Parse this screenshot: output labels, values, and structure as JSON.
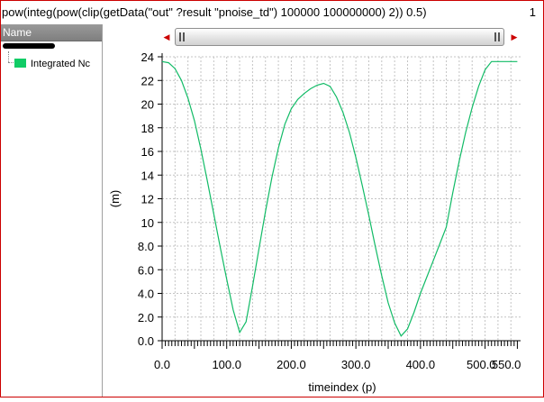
{
  "window": {
    "expression": "pow(integ(pow(clip(getData(\"out\" ?result \"pnoise_td\") 100000 100000000) 2)) 0.5)",
    "page_number": "1",
    "accent_color": "#cc0000"
  },
  "sidebar": {
    "header": "Name",
    "legend_item_label": "Integrated Nc",
    "legend_color": "#11cc66"
  },
  "scrollbar": {
    "left_arrow_icon": "triangle-left-icon",
    "right_arrow_icon": "triangle-right-icon"
  },
  "chart_data": {
    "type": "line",
    "xlabel": "timeindex (p)",
    "ylabel": "(m)",
    "xlim": [
      0,
      555
    ],
    "ylim": [
      0,
      24
    ],
    "x_ticks": [
      "0.0",
      "100.0",
      "200.0",
      "300.0",
      "400.0",
      "500.0",
      "550.0"
    ],
    "y_ticks": [
      "0.0",
      "2.0",
      "4.0",
      "6.0",
      "8.0",
      "10",
      "12",
      "14",
      "16",
      "18",
      "20",
      "22",
      "24"
    ],
    "grid": true,
    "series": [
      {
        "color": "#11bb66",
        "x": [
          0,
          10,
          20,
          30,
          40,
          50,
          60,
          70,
          80,
          90,
          100,
          110,
          120,
          130,
          140,
          150,
          160,
          170,
          180,
          190,
          200,
          210,
          220,
          230,
          240,
          250,
          260,
          270,
          280,
          290,
          300,
          310,
          320,
          330,
          340,
          350,
          360,
          370,
          380,
          390,
          400,
          410,
          420,
          430,
          440,
          450,
          460,
          470,
          480,
          490,
          500,
          510,
          520,
          530,
          540,
          550
        ],
        "y": [
          23.6,
          23.5,
          23.0,
          22.0,
          20.5,
          18.6,
          16.2,
          13.5,
          10.7,
          7.9,
          5.2,
          2.6,
          0.7,
          1.6,
          4.6,
          7.8,
          10.9,
          13.8,
          16.3,
          18.3,
          19.6,
          20.4,
          20.9,
          21.3,
          21.6,
          21.75,
          21.5,
          20.6,
          19.3,
          17.6,
          15.5,
          13.1,
          10.6,
          8.0,
          5.5,
          3.2,
          1.5,
          0.4,
          1.0,
          2.4,
          4.0,
          5.4,
          6.8,
          8.2,
          9.6,
          12.5,
          15.2,
          17.6,
          19.7,
          21.5,
          22.9,
          23.6,
          23.6,
          23.6,
          23.6,
          23.6
        ]
      }
    ]
  }
}
